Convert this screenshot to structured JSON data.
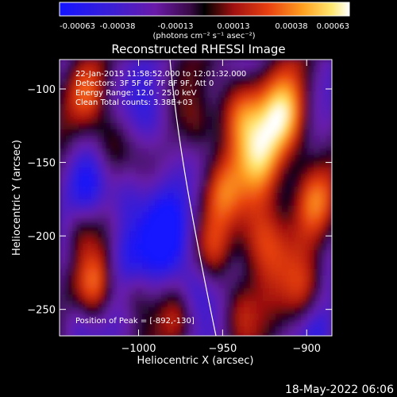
{
  "colorbar": {
    "ticks": [
      "-0.00063",
      "-0.00038",
      "-0.00013",
      "0.00013",
      "0.00038",
      "0.00063"
    ],
    "units": "(photons cm⁻² s⁻¹ asec⁻²)"
  },
  "chart_data": {
    "type": "heatmap",
    "title": "Reconstructed RHESSI Image",
    "xlabel": "Heliocentric X (arcsec)",
    "ylabel": "Heliocentric Y (arcsec)",
    "xlim": [
      -1047,
      -885
    ],
    "ylim": [
      -268,
      -80
    ],
    "x_ticks": [
      -1000,
      -950,
      -900
    ],
    "x_tick_labels": [
      "−1000",
      "−950",
      "−900"
    ],
    "y_ticks": [
      -100,
      -150,
      -200,
      -250
    ],
    "y_tick_labels": [
      "−100",
      "−150",
      "−200",
      "−250"
    ],
    "color_range": [
      -0.00063,
      0.00063
    ],
    "colormap": "RHESSI blue-purple-red-yellow-white",
    "peak": [
      -892,
      -130
    ],
    "annotations": [
      "22-Jan-2015 11:58:52.000 to 12:01:32.000",
      "Detectors: 3F 5F 6F 7F 8F 9F, Att 0",
      "Energy Range: 12.0 - 25.0 keV",
      "Clean    Total counts: 3.38E+03"
    ],
    "peak_label": "Position of Peak = [-892,-130]"
  },
  "footer": {
    "date": "18-May-2022 06:06"
  }
}
